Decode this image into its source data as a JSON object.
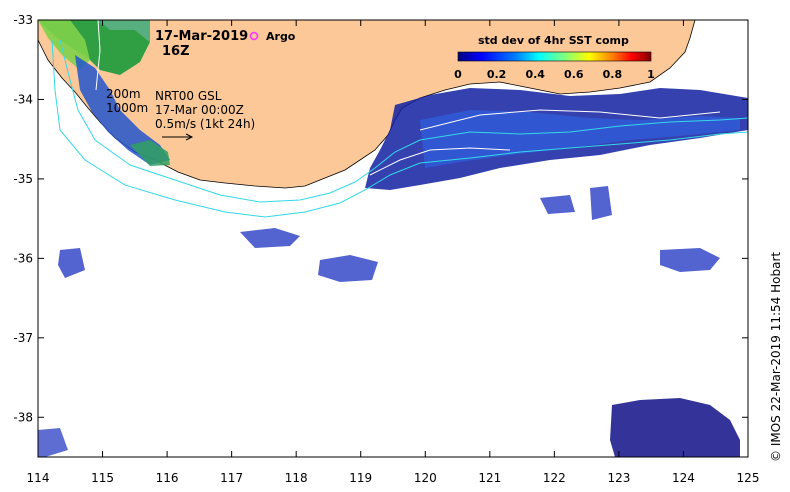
{
  "map": {
    "date": "17-Mar-2019",
    "time": "16Z",
    "argo_label": "Argo",
    "colorbar_title": "std dev of 4hr SST comp",
    "colorbar_ticks": [
      "0",
      "0.2",
      "0.4",
      "0.6",
      "0.8",
      "1"
    ],
    "isobath_200": "200m",
    "isobath_1000": "1000m",
    "current_source": "NRT00 GSL",
    "current_time": "17-Mar 00:00Z",
    "vector_scale": "0.5m/s (1kt 24h)",
    "credit": "©  IMOS 22-Mar-2019 11:54 Hobart",
    "lon_ticks": [
      "114",
      "115",
      "116",
      "117",
      "118",
      "119",
      "120",
      "121",
      "122",
      "123",
      "124",
      "125"
    ],
    "lat_ticks": [
      "-33",
      "-34",
      "-35",
      "-36",
      "-37",
      "-38"
    ],
    "lon_range": [
      114,
      125
    ],
    "lat_range": [
      -38.5,
      -33
    ],
    "colors": {
      "land": "#fcc898",
      "isobath": "#34d8e8",
      "argo": "#ff33ff",
      "colormap": [
        "#00007f",
        "#0000ff",
        "#007fff",
        "#00ffff",
        "#7fff7f",
        "#ffff00",
        "#ff7f00",
        "#ff0000",
        "#7f0000"
      ]
    }
  }
}
